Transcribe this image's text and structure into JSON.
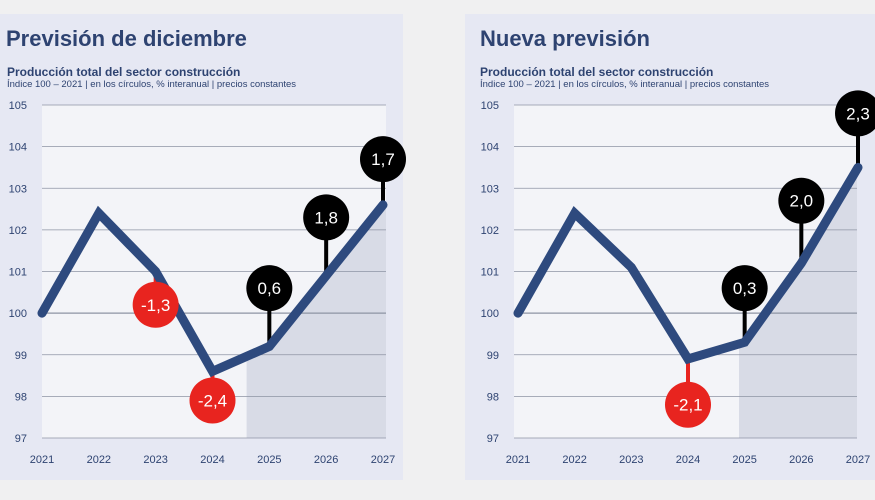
{
  "colors": {
    "line": "#2e4a7e",
    "grid": "#8e94a4",
    "plot_bg": "#f3f4f8",
    "forecast_bg": "#d8dbe6",
    "bubble_pos": "#000000",
    "bubble_neg": "#e8241f",
    "text": "#2e4371"
  },
  "chart_data": [
    {
      "type": "line",
      "title": "Previsión de diciembre",
      "subtitle": "Producción total del sector construcción",
      "note": "Índice 100 – 2021  | en los círculos, % interanual | precios constantes",
      "categories": [
        "2021",
        "2022",
        "2023",
        "2024",
        "2025",
        "2026",
        "2027"
      ],
      "series": [
        {
          "name": "Índice",
          "values": [
            100,
            102.4,
            101,
            98.6,
            99.2,
            100.9,
            102.6
          ]
        }
      ],
      "ylim": [
        97,
        105
      ],
      "yticks": [
        "97",
        "98",
        "99",
        "100",
        "101",
        "102",
        "103",
        "104",
        "105"
      ],
      "forecast_from": 2024.6,
      "annotations": [
        {
          "year": 2023,
          "label": "-1,3",
          "sign": "neg",
          "bubble_value": 100.2
        },
        {
          "year": 2024,
          "label": "-2,4",
          "sign": "neg",
          "bubble_value": 97.9
        },
        {
          "year": 2025,
          "label": "0,6",
          "sign": "pos",
          "bubble_value": 100.6
        },
        {
          "year": 2026,
          "label": "1,8",
          "sign": "pos",
          "bubble_value": 102.3
        },
        {
          "year": 2027,
          "label": "1,7",
          "sign": "pos",
          "bubble_value": 103.7
        }
      ]
    },
    {
      "type": "line",
      "title": "Nueva previsión",
      "subtitle": "Producción total del sector construcción",
      "note": "Índice 100 – 2021  | en los círculos, % interanual | precios constantes",
      "categories": [
        "2021",
        "2022",
        "2023",
        "2024",
        "2025",
        "2026",
        "2027"
      ],
      "series": [
        {
          "name": "Índice",
          "values": [
            100,
            102.4,
            101.1,
            98.9,
            99.3,
            101.2,
            103.5
          ]
        }
      ],
      "ylim": [
        97,
        105
      ],
      "yticks": [
        "97",
        "98",
        "99",
        "100",
        "101",
        "102",
        "103",
        "104",
        "105"
      ],
      "forecast_from": 2024.9,
      "annotations": [
        {
          "year": 2024,
          "label": "-2,1",
          "sign": "neg",
          "bubble_value": 97.8
        },
        {
          "year": 2025,
          "label": "0,3",
          "sign": "pos",
          "bubble_value": 100.6
        },
        {
          "year": 2026,
          "label": "2,0",
          "sign": "pos",
          "bubble_value": 102.7
        },
        {
          "year": 2027,
          "label": "2,3",
          "sign": "pos",
          "bubble_value": 104.8
        }
      ]
    }
  ]
}
